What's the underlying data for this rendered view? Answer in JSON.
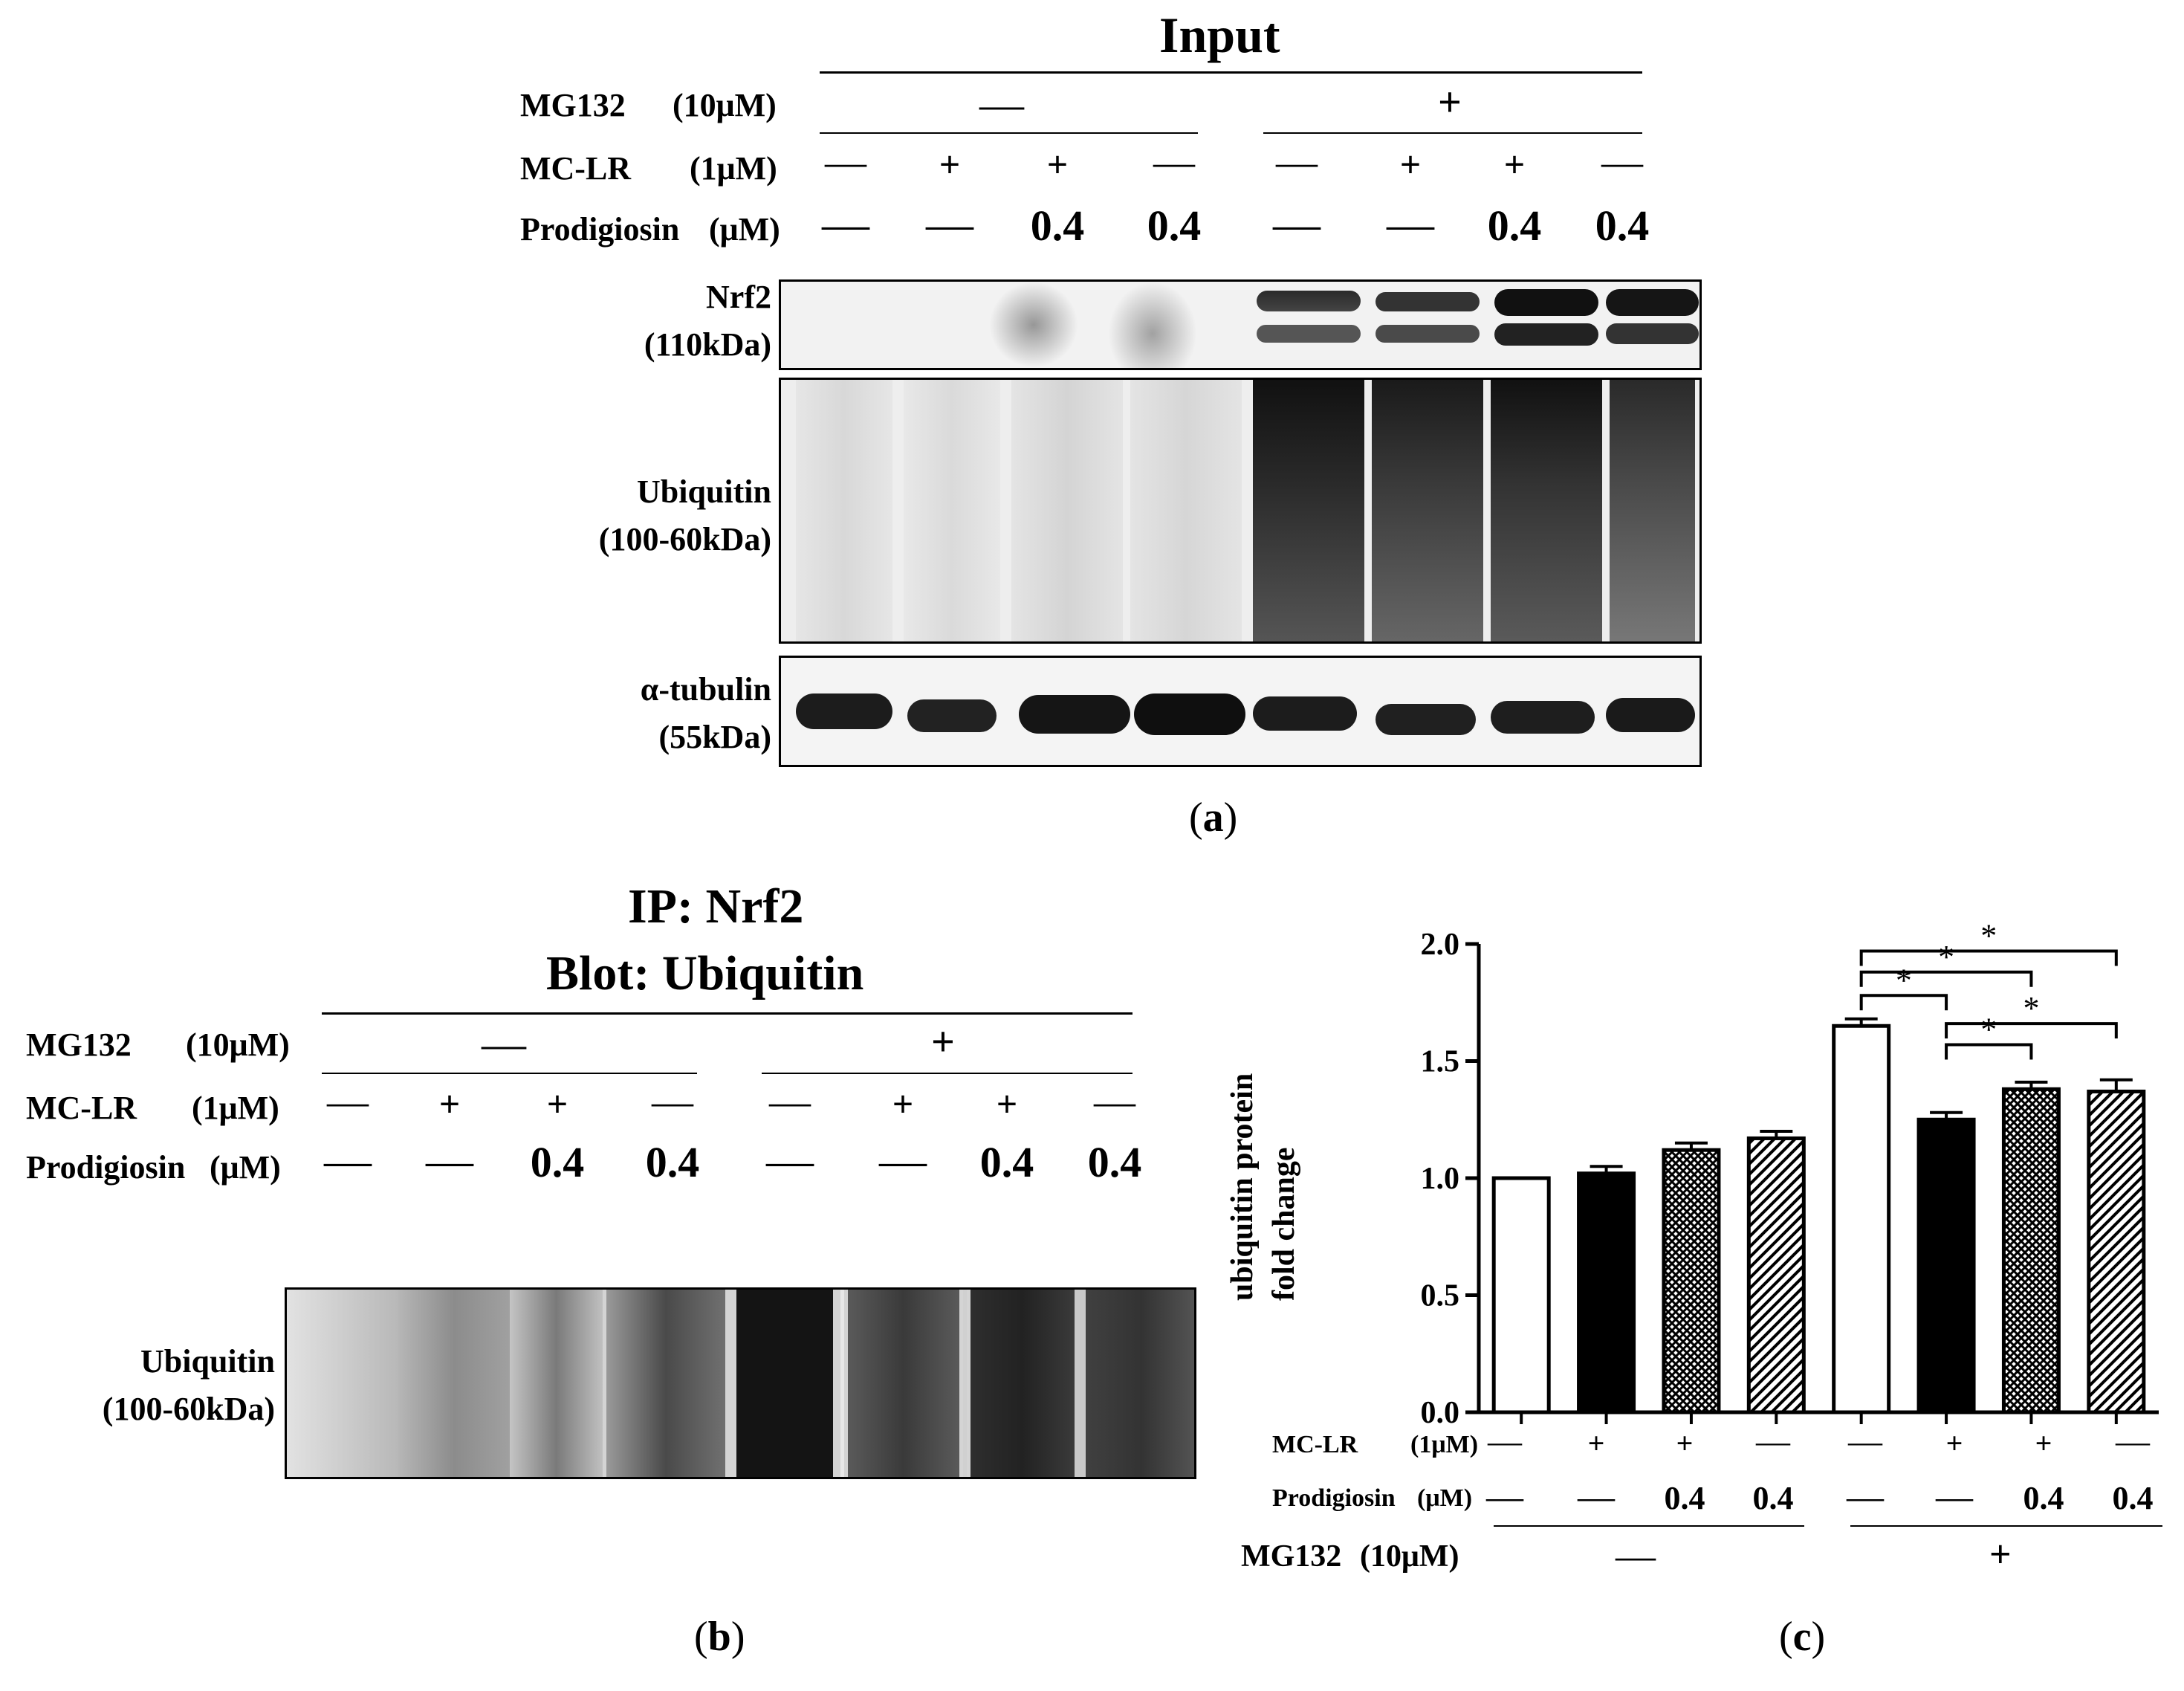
{
  "panel_a": {
    "title": "Input",
    "caption_letter": "a",
    "rows": [
      {
        "label": "MG132",
        "unit": "(10μM)",
        "values": [
          "—",
          "+"
        ]
      },
      {
        "label": "MC-LR",
        "unit": "(1μM)",
        "values": [
          "—",
          "+",
          "+",
          "—",
          "—",
          "+",
          "+",
          "—"
        ]
      },
      {
        "label": "Prodigiosin",
        "unit": "(μM)",
        "values": [
          "—",
          "—",
          "0.4",
          "0.4",
          "—",
          "—",
          "0.4",
          "0.4"
        ]
      }
    ],
    "blots": [
      {
        "name": "Nrf2",
        "size": "(110kDa)"
      },
      {
        "name": "Ubiquitin",
        "size": "(100-60kDa)"
      },
      {
        "name": "α-tubulin",
        "size": "(55kDa)"
      }
    ]
  },
  "panel_b": {
    "title_line1": "IP: Nrf2",
    "title_line2": "Blot: Ubiquitin",
    "caption_letter": "b",
    "rows": [
      {
        "label": "MG132",
        "unit": "(10μM)",
        "values": [
          "—",
          "+"
        ]
      },
      {
        "label": "MC-LR",
        "unit": "(1μM)",
        "values": [
          "—",
          "+",
          "+",
          "—",
          "—",
          "+",
          "+",
          "—"
        ]
      },
      {
        "label": "Prodigiosin",
        "unit": "(μM)",
        "values": [
          "—",
          "—",
          "0.4",
          "0.4",
          "—",
          "—",
          "0.4",
          "0.4"
        ]
      }
    ],
    "blot": {
      "name": "Ubiquitin",
      "size": "(100-60kDa)"
    }
  },
  "panel_c": {
    "caption_letter": "c",
    "ylabel_line1": "ubiquitin protein",
    "ylabel_line2": "fold change",
    "mclr_label": "MC-LR",
    "mclr_unit": "(1μM)",
    "mclr_values": [
      "—",
      "+",
      "+",
      "—",
      "—",
      "+",
      "+",
      "—"
    ],
    "prod_label": "Prodigiosin",
    "prod_unit": "(μM)",
    "prod_values": [
      "—",
      "—",
      "0.4",
      "0.4",
      "—",
      "—",
      "0.4",
      "0.4"
    ],
    "mg_label": "MG132",
    "mg_unit": "(10μM)",
    "mg_values": [
      "—",
      "+"
    ],
    "sig_marker": "*"
  },
  "chart_data": {
    "type": "bar",
    "ylabel": "ubiquitin protein fold change",
    "ylim": [
      0.0,
      2.0
    ],
    "yticks": [
      "0.0",
      "0.5",
      "1.0",
      "1.5",
      "2.0"
    ],
    "categories": [
      "1",
      "2",
      "3",
      "4",
      "5",
      "6",
      "7",
      "8"
    ],
    "values": [
      1.0,
      1.02,
      1.12,
      1.17,
      1.65,
      1.25,
      1.38,
      1.37
    ],
    "errors": [
      0.0,
      0.03,
      0.03,
      0.03,
      0.03,
      0.03,
      0.03,
      0.05
    ],
    "fills": [
      "white",
      "black",
      "crosshatch",
      "diagonal",
      "white",
      "black",
      "crosshatch",
      "diagonal"
    ],
    "comparisons": [
      {
        "from": 5,
        "to": 6,
        "label": "*"
      },
      {
        "from": 5,
        "to": 7,
        "label": "*"
      },
      {
        "from": 5,
        "to": 8,
        "label": "*"
      },
      {
        "from": 6,
        "to": 7,
        "label": "*"
      },
      {
        "from": 6,
        "to": 8,
        "label": "*"
      }
    ]
  }
}
